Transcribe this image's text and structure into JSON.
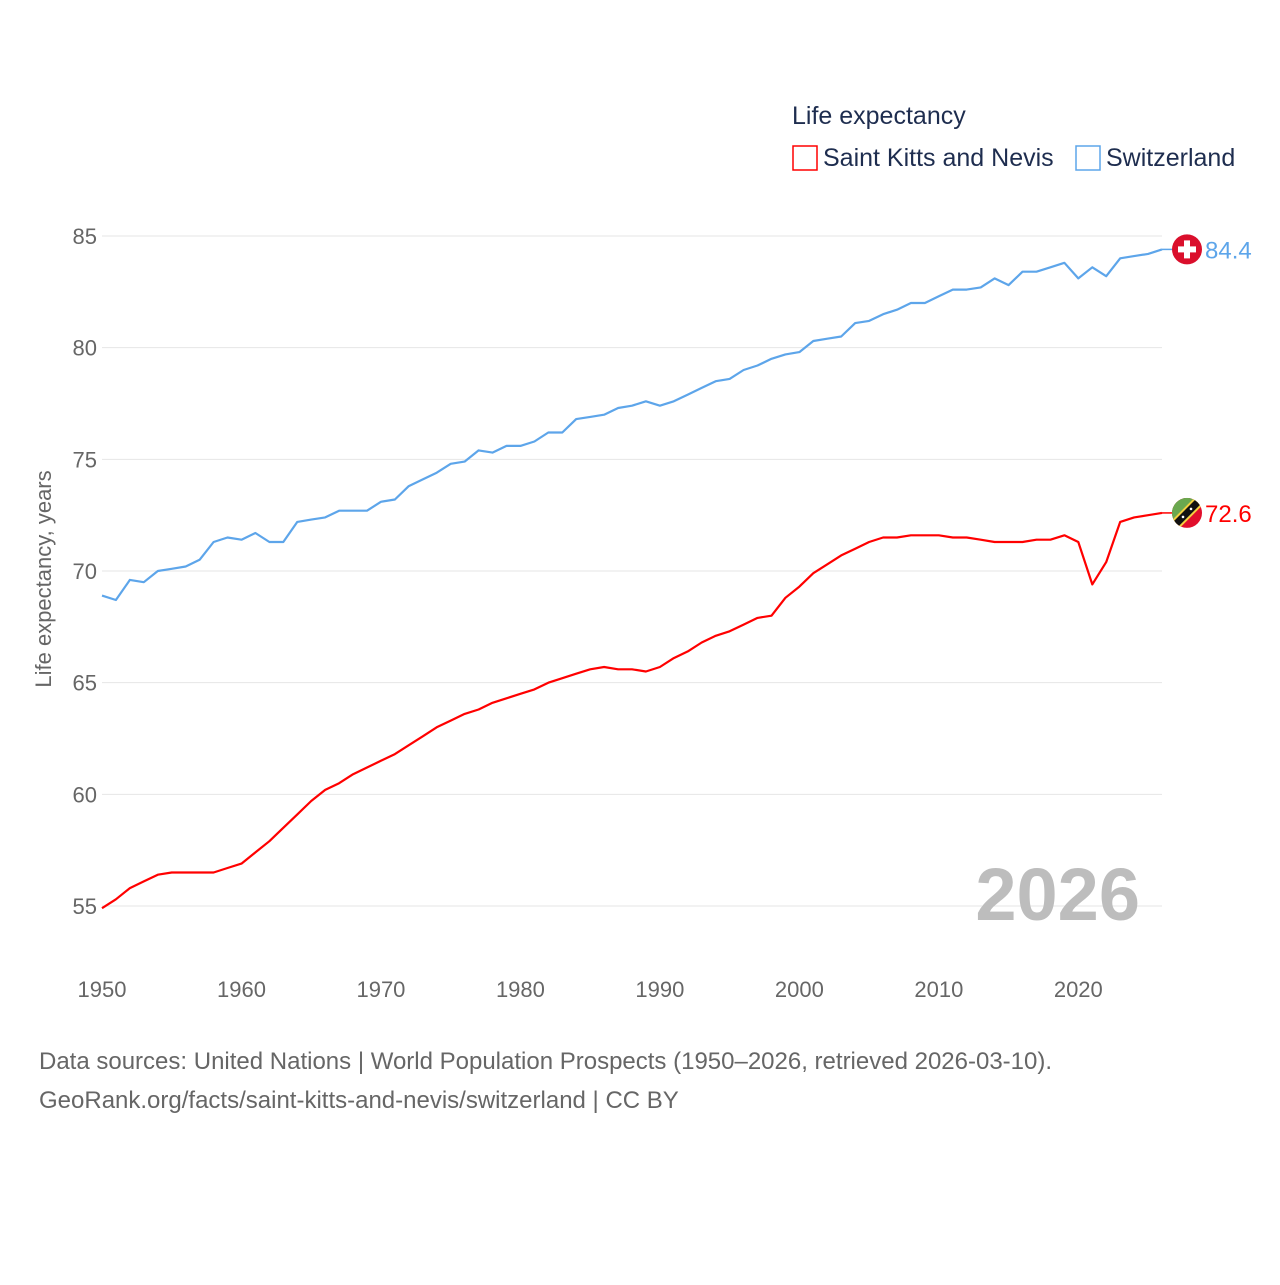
{
  "chart_data": {
    "type": "line",
    "title": "",
    "xlabel": "",
    "ylabel": "Life expectancy, years",
    "xlim": [
      1950,
      2026
    ],
    "ylim": [
      53,
      86
    ],
    "x_ticks": [
      1950,
      1960,
      1970,
      1980,
      1990,
      2000,
      2010,
      2020
    ],
    "y_ticks": [
      55,
      60,
      65,
      70,
      75,
      80,
      85
    ],
    "grid": true,
    "legend": {
      "title": "Life expectancy",
      "placement": "top-right"
    },
    "year_watermark": "2026",
    "x": [
      1950,
      1951,
      1952,
      1953,
      1954,
      1955,
      1956,
      1957,
      1958,
      1959,
      1960,
      1961,
      1962,
      1963,
      1964,
      1965,
      1966,
      1967,
      1968,
      1969,
      1970,
      1971,
      1972,
      1973,
      1974,
      1975,
      1976,
      1977,
      1978,
      1979,
      1980,
      1981,
      1982,
      1983,
      1984,
      1985,
      1986,
      1987,
      1988,
      1989,
      1990,
      1991,
      1992,
      1993,
      1994,
      1995,
      1996,
      1997,
      1998,
      1999,
      2000,
      2001,
      2002,
      2003,
      2004,
      2005,
      2006,
      2007,
      2008,
      2009,
      2010,
      2011,
      2012,
      2013,
      2014,
      2015,
      2016,
      2017,
      2018,
      2019,
      2020,
      2021,
      2022,
      2023,
      2024,
      2025,
      2026
    ],
    "series": [
      {
        "name": "Saint Kitts and Nevis",
        "color": "#ff0000",
        "end_label": "72.6",
        "flag": "saint-kitts-and-nevis-flag",
        "values": [
          54.9,
          55.3,
          55.8,
          56.1,
          56.4,
          56.5,
          56.5,
          56.5,
          56.5,
          56.7,
          56.9,
          57.4,
          57.9,
          58.5,
          59.1,
          59.7,
          60.2,
          60.5,
          60.9,
          61.2,
          61.5,
          61.8,
          62.2,
          62.6,
          63.0,
          63.3,
          63.6,
          63.8,
          64.1,
          64.3,
          64.5,
          64.7,
          65.0,
          65.2,
          65.4,
          65.6,
          65.7,
          65.6,
          65.6,
          65.5,
          65.7,
          66.1,
          66.4,
          66.8,
          67.1,
          67.3,
          67.6,
          67.9,
          68.0,
          68.8,
          69.3,
          69.9,
          70.3,
          70.7,
          71.0,
          71.3,
          71.5,
          71.5,
          71.6,
          71.6,
          71.6,
          71.5,
          71.5,
          71.4,
          71.3,
          71.3,
          71.3,
          71.4,
          71.4,
          71.6,
          71.3,
          69.4,
          70.4,
          72.2,
          72.4,
          72.5,
          72.6
        ]
      },
      {
        "name": "Switzerland",
        "color": "#5da5ea",
        "end_label": "84.4",
        "flag": "switzerland-flag",
        "values": [
          68.9,
          68.7,
          69.6,
          69.5,
          70.0,
          70.1,
          70.2,
          70.5,
          71.3,
          71.5,
          71.4,
          71.7,
          71.3,
          71.3,
          72.2,
          72.3,
          72.4,
          72.7,
          72.7,
          72.7,
          73.1,
          73.2,
          73.8,
          74.1,
          74.4,
          74.8,
          74.9,
          75.4,
          75.3,
          75.6,
          75.6,
          75.8,
          76.2,
          76.2,
          76.8,
          76.9,
          77.0,
          77.3,
          77.4,
          77.6,
          77.4,
          77.6,
          77.9,
          78.2,
          78.5,
          78.6,
          79.0,
          79.2,
          79.5,
          79.7,
          79.8,
          80.3,
          80.4,
          80.5,
          81.1,
          81.2,
          81.5,
          81.7,
          82.0,
          82.0,
          82.3,
          82.6,
          82.6,
          82.7,
          83.1,
          82.8,
          83.4,
          83.4,
          83.6,
          83.8,
          83.1,
          83.6,
          83.2,
          84.0,
          84.1,
          84.2,
          84.4
        ]
      }
    ]
  },
  "footer": {
    "line1": "Data sources: United Nations | World Population Prospects (1950–2026, retrieved 2026-03-10).",
    "line2": "GeoRank.org/facts/saint-kitts-and-nevis/switzerland | CC BY"
  }
}
